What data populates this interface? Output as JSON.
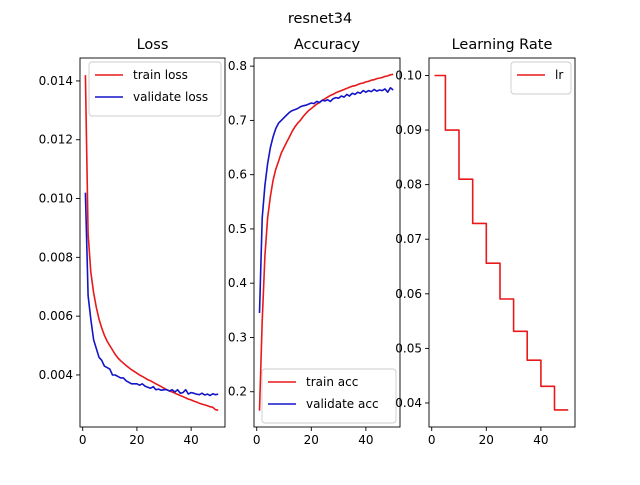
{
  "figure": {
    "suptitle": "resnet34"
  },
  "colors": {
    "red": "#e8191b",
    "blue": "#1414c8"
  },
  "chart_data": [
    {
      "type": "line",
      "title": "Loss",
      "xlim": [
        -1,
        52.5
      ],
      "ylim": [
        0.00223,
        0.01478
      ],
      "xticks": [
        0,
        20,
        40
      ],
      "xtick_labels": [
        "0",
        "20",
        "40"
      ],
      "yticks": [
        0.004,
        0.006,
        0.008,
        0.01,
        0.012,
        0.014
      ],
      "ytick_labels": [
        "0.004",
        "0.006",
        "0.008",
        "0.010",
        "0.012",
        "0.014"
      ],
      "legend": "top-right",
      "series": [
        {
          "name": "train loss",
          "color": "#e8191b",
          "x": [
            1,
            2,
            3,
            4,
            5,
            6,
            7,
            8,
            9,
            10,
            11,
            12,
            13,
            14,
            15,
            16,
            17,
            18,
            19,
            20,
            21,
            22,
            23,
            24,
            25,
            26,
            27,
            28,
            29,
            30,
            31,
            32,
            33,
            34,
            35,
            36,
            37,
            38,
            39,
            40,
            41,
            42,
            43,
            44,
            45,
            46,
            47,
            48,
            49,
            50
          ],
          "y": [
            0.0142,
            0.0088,
            0.0075,
            0.0068,
            0.0063,
            0.0059,
            0.0056,
            0.00535,
            0.00515,
            0.005,
            0.00485,
            0.0047,
            0.00458,
            0.00448,
            0.0044,
            0.00432,
            0.00425,
            0.00418,
            0.00412,
            0.00406,
            0.004,
            0.00395,
            0.0039,
            0.00384,
            0.0038,
            0.00375,
            0.0037,
            0.00365,
            0.0036,
            0.00355,
            0.0035,
            0.00346,
            0.00342,
            0.00338,
            0.00334,
            0.0033,
            0.00326,
            0.00322,
            0.00318,
            0.00315,
            0.00311,
            0.00308,
            0.00304,
            0.00301,
            0.00298,
            0.00295,
            0.00292,
            0.0029,
            0.00282,
            0.0028
          ]
        },
        {
          "name": "validate loss",
          "color": "#1414c8",
          "x": [
            1,
            2,
            3,
            4,
            5,
            6,
            7,
            8,
            9,
            10,
            11,
            12,
            13,
            14,
            15,
            16,
            17,
            18,
            19,
            20,
            21,
            22,
            23,
            24,
            25,
            26,
            27,
            28,
            29,
            30,
            31,
            32,
            33,
            34,
            35,
            36,
            37,
            38,
            39,
            40,
            41,
            42,
            43,
            44,
            45,
            46,
            47,
            48,
            49,
            50
          ],
          "y": [
            0.0102,
            0.0067,
            0.0059,
            0.0052,
            0.0049,
            0.0046,
            0.0045,
            0.0043,
            0.00425,
            0.0042,
            0.004,
            0.004,
            0.00395,
            0.0039,
            0.0039,
            0.0038,
            0.00375,
            0.0037,
            0.0037,
            0.0037,
            0.00365,
            0.0037,
            0.00362,
            0.00358,
            0.00355,
            0.0036,
            0.0035,
            0.00352,
            0.00348,
            0.0035,
            0.0035,
            0.00345,
            0.0035,
            0.00342,
            0.0035,
            0.00338,
            0.0034,
            0.0035,
            0.00335,
            0.0034,
            0.00338,
            0.00335,
            0.00333,
            0.00338,
            0.00332,
            0.00335,
            0.0033,
            0.00336,
            0.00333,
            0.00335
          ]
        }
      ]
    },
    {
      "type": "line",
      "title": "Accuracy",
      "xlim": [
        -1,
        52.5
      ],
      "ylim": [
        0.135,
        0.815
      ],
      "xticks": [
        0,
        20,
        40
      ],
      "xtick_labels": [
        "0",
        "20",
        "40"
      ],
      "yticks": [
        0.2,
        0.3,
        0.4,
        0.5,
        0.6,
        0.7,
        0.8
      ],
      "ytick_labels": [
        "0.2",
        "0.3",
        "0.4",
        "0.5",
        "0.6",
        "0.7",
        "0.8"
      ],
      "legend": "bottom-right",
      "series": [
        {
          "name": "train acc",
          "color": "#e8191b",
          "x": [
            1,
            2,
            3,
            4,
            5,
            6,
            7,
            8,
            9,
            10,
            11,
            12,
            13,
            14,
            15,
            16,
            17,
            18,
            19,
            20,
            21,
            22,
            23,
            24,
            25,
            26,
            27,
            28,
            29,
            30,
            31,
            32,
            33,
            34,
            35,
            36,
            37,
            38,
            39,
            40,
            41,
            42,
            43,
            44,
            45,
            46,
            47,
            48,
            49,
            50
          ],
          "y": [
            0.165,
            0.33,
            0.45,
            0.52,
            0.56,
            0.59,
            0.61,
            0.625,
            0.64,
            0.65,
            0.66,
            0.67,
            0.68,
            0.688,
            0.695,
            0.7,
            0.707,
            0.713,
            0.718,
            0.722,
            0.726,
            0.73,
            0.733,
            0.737,
            0.74,
            0.743,
            0.746,
            0.748,
            0.751,
            0.753,
            0.755,
            0.757,
            0.759,
            0.761,
            0.763,
            0.764,
            0.766,
            0.768,
            0.769,
            0.771,
            0.772,
            0.774,
            0.775,
            0.777,
            0.778,
            0.779,
            0.781,
            0.782,
            0.784,
            0.785
          ]
        },
        {
          "name": "validate acc",
          "color": "#1414c8",
          "x": [
            1,
            2,
            3,
            4,
            5,
            6,
            7,
            8,
            9,
            10,
            11,
            12,
            13,
            14,
            15,
            16,
            17,
            18,
            19,
            20,
            21,
            22,
            23,
            24,
            25,
            26,
            27,
            28,
            29,
            30,
            31,
            32,
            33,
            34,
            35,
            36,
            37,
            38,
            39,
            40,
            41,
            42,
            43,
            44,
            45,
            46,
            47,
            48,
            49,
            50
          ],
          "y": [
            0.345,
            0.52,
            0.58,
            0.62,
            0.65,
            0.67,
            0.685,
            0.695,
            0.7,
            0.705,
            0.71,
            0.715,
            0.718,
            0.72,
            0.722,
            0.725,
            0.727,
            0.728,
            0.73,
            0.732,
            0.731,
            0.735,
            0.733,
            0.737,
            0.736,
            0.738,
            0.735,
            0.74,
            0.742,
            0.741,
            0.745,
            0.743,
            0.748,
            0.745,
            0.75,
            0.748,
            0.752,
            0.75,
            0.755,
            0.752,
            0.755,
            0.753,
            0.757,
            0.754,
            0.756,
            0.755,
            0.758,
            0.752,
            0.76,
            0.756
          ]
        }
      ]
    },
    {
      "type": "line",
      "title": "Learning Rate",
      "xlim": [
        -1,
        52.5
      ],
      "ylim": [
        0.0356,
        0.1032
      ],
      "xticks": [
        0,
        20,
        40
      ],
      "xtick_labels": [
        "0",
        "20",
        "40"
      ],
      "yticks": [
        0.04,
        0.05,
        0.06,
        0.07,
        0.08,
        0.09,
        0.1
      ],
      "ytick_labels": [
        "0.04",
        "0.05",
        "0.06",
        "0.07",
        "0.08",
        "0.09",
        "0.10"
      ],
      "legend": "top-right",
      "series": [
        {
          "name": "lr",
          "color": "#e8191b",
          "x": [
            1,
            5,
            5,
            10,
            10,
            15,
            15,
            20,
            20,
            25,
            25,
            30,
            30,
            35,
            35,
            40,
            40,
            45,
            45,
            50
          ],
          "y": [
            0.1,
            0.1,
            0.09,
            0.09,
            0.081,
            0.081,
            0.0729,
            0.0729,
            0.06561,
            0.06561,
            0.05905,
            0.05905,
            0.05314,
            0.05314,
            0.04783,
            0.04783,
            0.04305,
            0.04305,
            0.03874,
            0.03874
          ]
        }
      ]
    }
  ]
}
